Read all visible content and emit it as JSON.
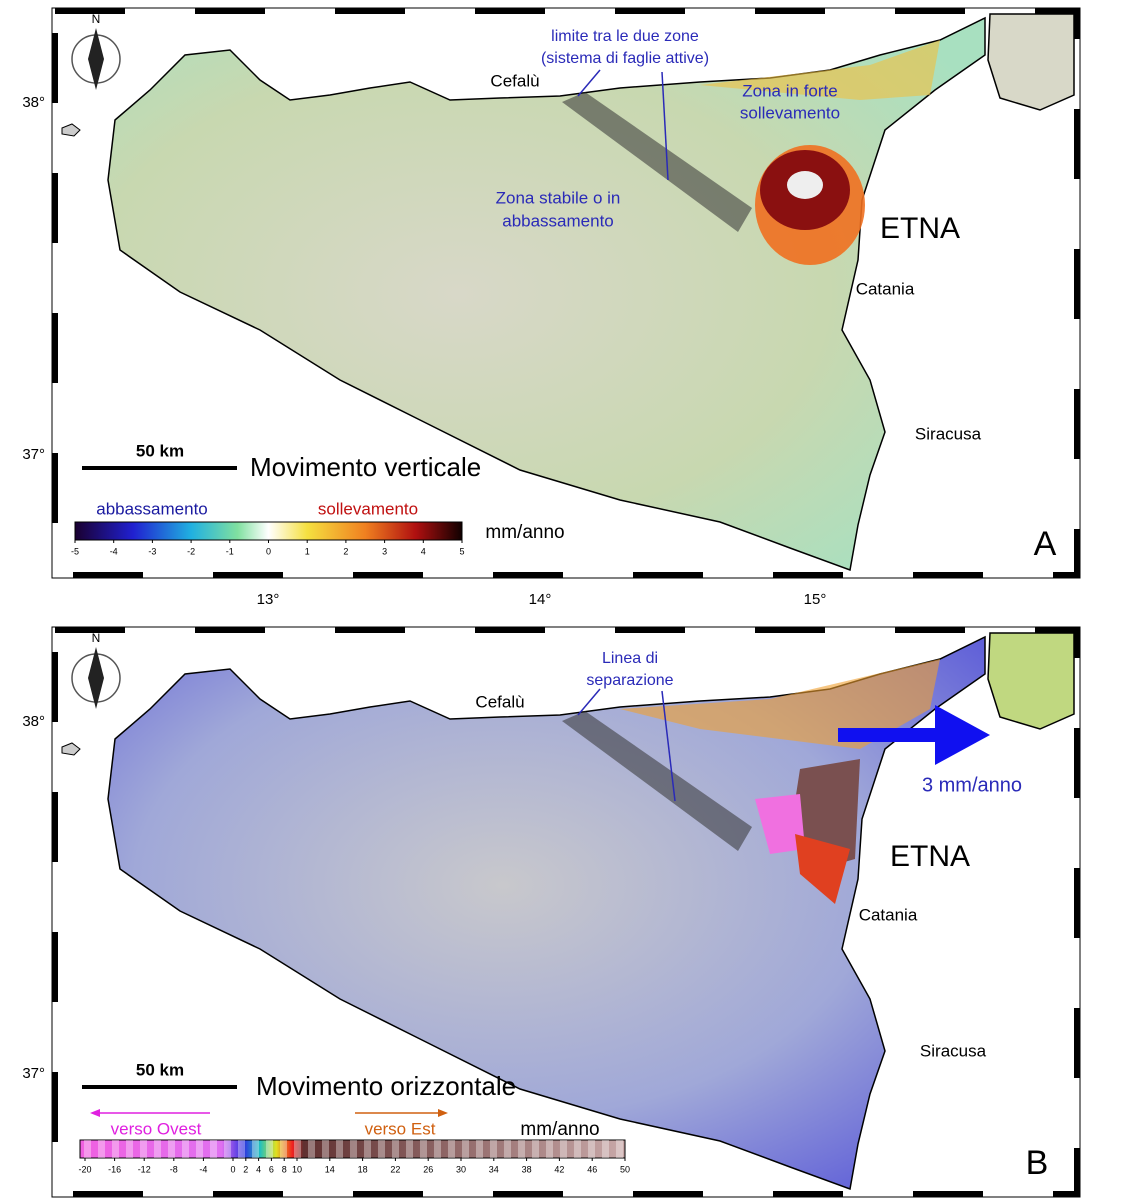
{
  "panels": [
    {
      "north": "N",
      "fault_label": [
        "limite tra le due zone",
        "(sistema di faglie attive)"
      ],
      "places": {
        "cefalu": "Cefalù",
        "etna": "ETNA",
        "catania": "Catania",
        "siracusa": "Siracusa"
      },
      "zone_labels": [
        "Zona in forte",
        "sollevamento",
        "Zona stabile o in",
        "abbassamento"
      ],
      "scale": "50 km",
      "title": "Movimento verticale",
      "legend_left": "abbassamento",
      "legend_right": "sollevamento",
      "unit": "mm/anno",
      "colorbar_ticks": [
        -5,
        -4,
        -3,
        -2,
        -1,
        0,
        1,
        2,
        3,
        4,
        5
      ],
      "letter": "A",
      "lat_labels": [
        "38°",
        "37°"
      ]
    },
    {
      "north": "N",
      "fault_label": [
        "Linea di",
        "separazione"
      ],
      "places": {
        "cefalu": "Cefalù",
        "etna": "ETNA",
        "catania": "Catania",
        "siracusa": "Siracusa"
      },
      "arrow_label": "3 mm/anno",
      "scale": "50 km",
      "title": "Movimento orizzontale",
      "legend_left": "verso Ovest",
      "legend_right": "verso Est",
      "unit": "mm/anno",
      "colorbar_ticks": [
        -20,
        -16,
        -12,
        -8,
        -4,
        0,
        2,
        4,
        6,
        8,
        10,
        14,
        18,
        22,
        26,
        30,
        34,
        38,
        42,
        46,
        50
      ],
      "letter": "B",
      "lat_labels": [
        "38°",
        "37°"
      ]
    }
  ],
  "lon_labels": [
    "13°",
    "14°",
    "15°"
  ]
}
